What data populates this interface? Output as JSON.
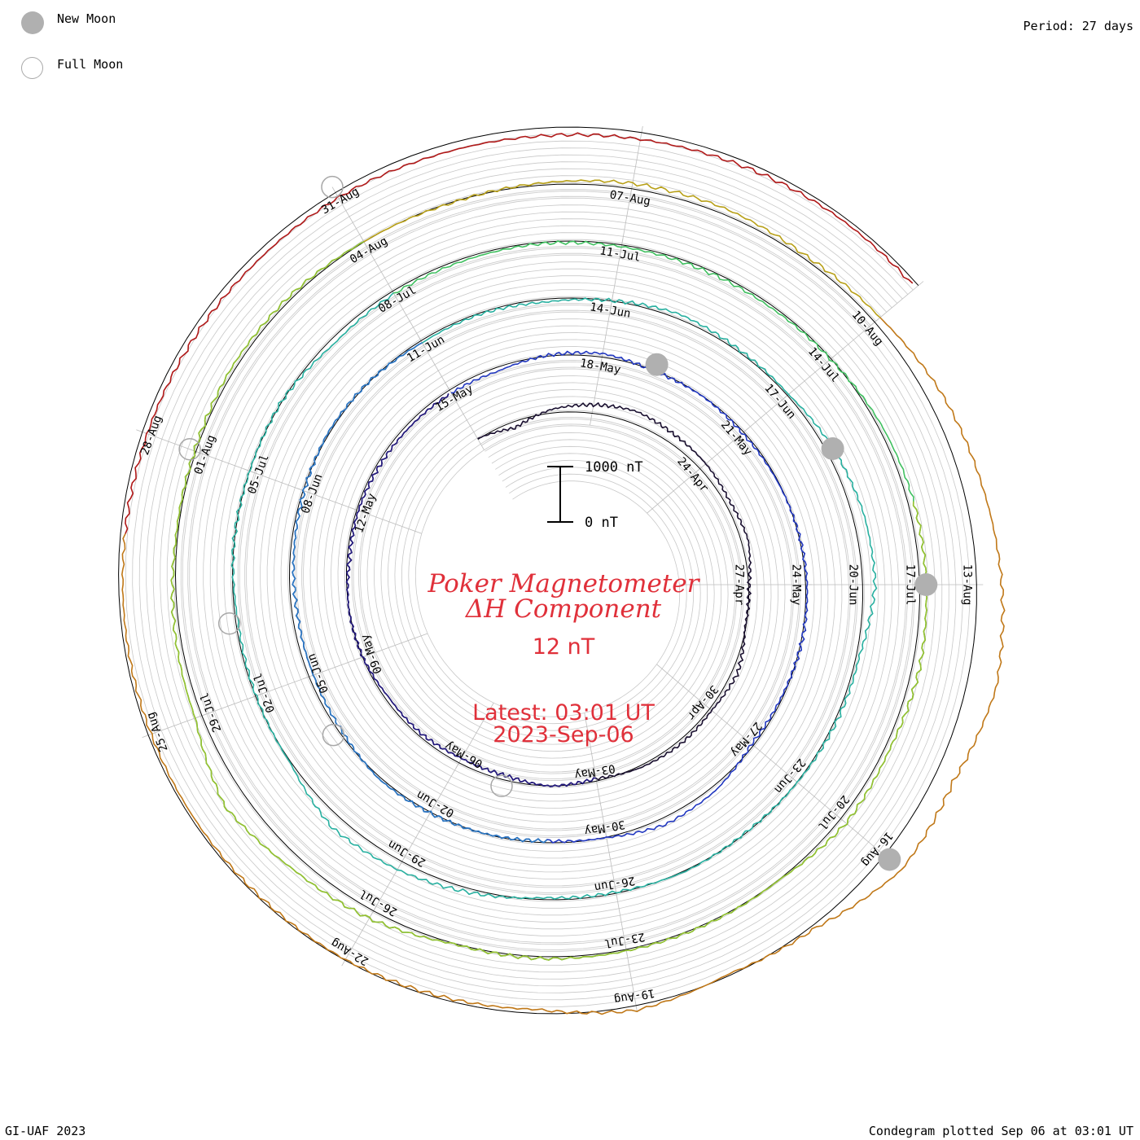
{
  "legend": {
    "new_moon_label": "New Moon",
    "full_moon_label": "Full Moon",
    "new_moon_icon": "filled-circle-icon",
    "full_moon_icon": "hollow-circle-icon",
    "new_moon_color": "#b0b0b0",
    "full_moon_color": "#a8a8a8"
  },
  "period_label": "Period: 27 days",
  "footer": {
    "credit": "GI-UAF 2023",
    "plotted": "Condegram plotted Sep 06 at 03:01 UT"
  },
  "center": {
    "title_line1": "Poker Magnetometer",
    "title_line2": "ΔH Component",
    "current_value": "12 nT",
    "latest_line1": "Latest: 03:01 UT",
    "latest_line2": "2023-Sep-06",
    "text_color": "#e0303a",
    "scale_top_label": "1000 nT",
    "scale_bottom_label": "0 nT"
  },
  "chart_data": {
    "type": "spiral-line",
    "title": "Poker Magnetometer ΔH Component",
    "period_days": 27,
    "units": "nT",
    "scale_bar": [
      0,
      1000
    ],
    "latest_value_nT": 12,
    "latest_time": "2023-Sep-06 03:01 UT",
    "start_date": "2023-04-18",
    "date_ticks": [
      {
        "date": "2023-04-24",
        "label": "24-Apr"
      },
      {
        "date": "2023-04-27",
        "label": "27-Apr"
      },
      {
        "date": "2023-04-30",
        "label": "30-Apr"
      },
      {
        "date": "2023-05-03",
        "label": "03-May"
      },
      {
        "date": "2023-05-06",
        "label": "06-May"
      },
      {
        "date": "2023-05-09",
        "label": "09-May"
      },
      {
        "date": "2023-05-12",
        "label": "12-May"
      },
      {
        "date": "2023-05-15",
        "label": "15-May"
      },
      {
        "date": "2023-05-18",
        "label": "18-May"
      },
      {
        "date": "2023-05-21",
        "label": "21-May"
      },
      {
        "date": "2023-05-24",
        "label": "24-May"
      },
      {
        "date": "2023-05-27",
        "label": "27-May"
      },
      {
        "date": "2023-05-30",
        "label": "30-May"
      },
      {
        "date": "2023-06-02",
        "label": "02-Jun"
      },
      {
        "date": "2023-06-05",
        "label": "05-Jun"
      },
      {
        "date": "2023-06-08",
        "label": "08-Jun"
      },
      {
        "date": "2023-06-11",
        "label": "11-Jun"
      },
      {
        "date": "2023-06-14",
        "label": "14-Jun"
      },
      {
        "date": "2023-06-17",
        "label": "17-Jun"
      },
      {
        "date": "2023-06-20",
        "label": "20-Jun"
      },
      {
        "date": "2023-06-23",
        "label": "23-Jun"
      },
      {
        "date": "2023-06-26",
        "label": "26-Jun"
      },
      {
        "date": "2023-06-29",
        "label": "29-Jun"
      },
      {
        "date": "2023-07-02",
        "label": "02-Jul"
      },
      {
        "date": "2023-07-05",
        "label": "05-Jul"
      },
      {
        "date": "2023-07-08",
        "label": "08-Jul"
      },
      {
        "date": "2023-07-11",
        "label": "11-Jul"
      },
      {
        "date": "2023-07-14",
        "label": "14-Jul"
      },
      {
        "date": "2023-07-17",
        "label": "17-Jul"
      },
      {
        "date": "2023-07-20",
        "label": "20-Jul"
      },
      {
        "date": "2023-07-23",
        "label": "23-Jul"
      },
      {
        "date": "2023-07-26",
        "label": "26-Jul"
      },
      {
        "date": "2023-07-29",
        "label": "29-Jul"
      },
      {
        "date": "2023-08-01",
        "label": "01-Aug"
      },
      {
        "date": "2023-08-04",
        "label": "04-Aug"
      },
      {
        "date": "2023-08-07",
        "label": "07-Aug"
      },
      {
        "date": "2023-08-10",
        "label": "10-Aug"
      },
      {
        "date": "2023-08-13",
        "label": "13-Aug"
      },
      {
        "date": "2023-08-16",
        "label": "16-Aug"
      },
      {
        "date": "2023-08-19",
        "label": "19-Aug"
      },
      {
        "date": "2023-08-22",
        "label": "22-Aug"
      },
      {
        "date": "2023-08-25",
        "label": "25-Aug"
      },
      {
        "date": "2023-08-28",
        "label": "28-Aug"
      },
      {
        "date": "2023-08-31",
        "label": "31-Aug"
      }
    ],
    "new_moons": [
      "2023-05-19",
      "2023-06-18",
      "2023-07-17",
      "2023-08-16"
    ],
    "full_moons": [
      "2023-05-05",
      "2023-06-04",
      "2023-07-03",
      "2023-08-01",
      "2023-08-31"
    ],
    "series_colors": [
      "#1a1030",
      "#241a80",
      "#2238c0",
      "#2a78c0",
      "#28b0a0",
      "#40c060",
      "#98c030",
      "#b8a018",
      "#c07818",
      "#b01818"
    ],
    "series_spans": [
      {
        "color": "#1a1030",
        "start": "2023-04-18",
        "end": "2023-05-15"
      },
      {
        "color": "#241a80",
        "start": "2023-05-03",
        "end": "2023-05-15"
      },
      {
        "color": "#2238c0",
        "start": "2023-05-15",
        "end": "2023-06-11"
      },
      {
        "color": "#2a78c0",
        "start": "2023-05-31",
        "end": "2023-06-11"
      },
      {
        "color": "#28b0a0",
        "start": "2023-06-11",
        "end": "2023-07-08"
      },
      {
        "color": "#40c060",
        "start": "2023-07-08",
        "end": "2023-08-04"
      },
      {
        "color": "#98c030",
        "start": "2023-07-16",
        "end": "2023-08-04"
      },
      {
        "color": "#b8a018",
        "start": "2023-08-04",
        "end": "2023-08-10"
      },
      {
        "color": "#c07818",
        "start": "2023-08-10",
        "end": "2023-08-27"
      },
      {
        "color": "#b01818",
        "start": "2023-08-27",
        "end": "2023-09-06"
      }
    ],
    "daily_values_nT": [
      310,
      180,
      360,
      450,
      520,
      460,
      430,
      380,
      420,
      300,
      280,
      400,
      340,
      360,
      330,
      250,
      300,
      210,
      200,
      240,
      230,
      290,
      300,
      250,
      260,
      240,
      230,
      230,
      220,
      310,
      360,
      280,
      290,
      260,
      280,
      300,
      320,
      310,
      270,
      250,
      380,
      420,
      300,
      260,
      290,
      310,
      330,
      240,
      210,
      200,
      230,
      270,
      320,
      300,
      250,
      270,
      240,
      300,
      380,
      330,
      320,
      420,
      500,
      520,
      350,
      330,
      300,
      280,
      310,
      270,
      260,
      360,
      460,
      520,
      310,
      280,
      250,
      300,
      290,
      300,
      200,
      240,
      250,
      270,
      260,
      250,
      250,
      280,
      360,
      400,
      410,
      430,
      380,
      420,
      300,
      310,
      320,
      330,
      300,
      450,
      520,
      700,
      420,
      380,
      320,
      320,
      360,
      350,
      300,
      280,
      330,
      390,
      400,
      350,
      420,
      560,
      640,
      750,
      830,
      640,
      700,
      360,
      260,
      380,
      220,
      250,
      280,
      260,
      250,
      240,
      230,
      210,
      200,
      190,
      180,
      190,
      160,
      150,
      170,
      200,
      230,
      220,
      160,
      170,
      190,
      160,
      240,
      360,
      420,
      550,
      620,
      720,
      690,
      560,
      640,
      520
    ]
  }
}
